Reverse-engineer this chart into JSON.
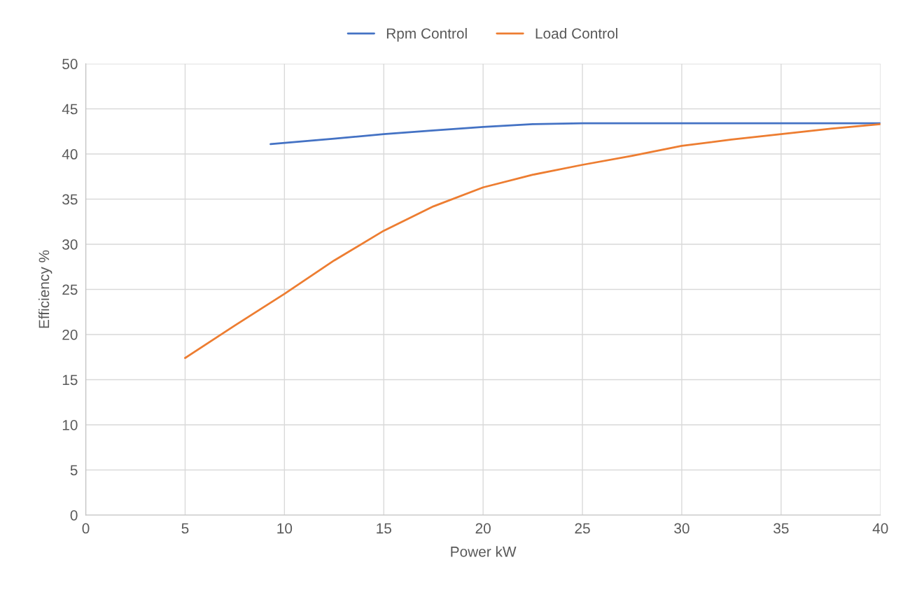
{
  "chart_data": {
    "type": "line",
    "xlabel": "Power kW",
    "ylabel": "Efficiency %",
    "xlim": [
      0,
      40
    ],
    "xticks": [
      0,
      5,
      10,
      15,
      20,
      25,
      30,
      35,
      40
    ],
    "ylim": [
      0,
      50
    ],
    "yticks": [
      0,
      5,
      10,
      15,
      20,
      25,
      30,
      35,
      40,
      45,
      50
    ],
    "grid": true,
    "legend": "top",
    "marker": "none",
    "line_style": "solid",
    "series": [
      {
        "name": "Rpm Control",
        "color": "#4472c4",
        "x": [
          9.3,
          12.5,
          15,
          17.5,
          20,
          22.5,
          25,
          27.5,
          30,
          35,
          40
        ],
        "values": [
          41.1,
          41.7,
          42.2,
          42.6,
          43.0,
          43.3,
          43.4,
          43.4,
          43.4,
          43.4,
          43.4
        ]
      },
      {
        "name": "Load Control",
        "color": "#ed7d31",
        "x": [
          5,
          7.5,
          10,
          12.5,
          15,
          17.5,
          20,
          22.5,
          25,
          27.5,
          30,
          32.5,
          35,
          37.5,
          40
        ],
        "values": [
          17.4,
          21,
          24.5,
          28.2,
          31.5,
          34.2,
          36.3,
          37.7,
          38.8,
          39.8,
          40.9,
          41.6,
          42.2,
          42.8,
          43.3
        ]
      }
    ]
  }
}
